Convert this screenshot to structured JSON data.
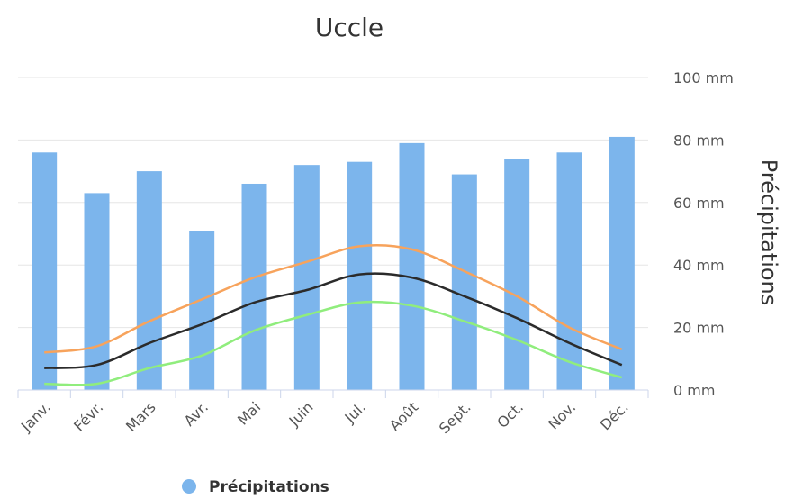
{
  "chart_data": {
    "type": "bar",
    "title": "Uccle",
    "ylabel": "Précipitations",
    "y_unit": "mm",
    "ylim": [
      0,
      100
    ],
    "yticks": [
      0,
      20,
      40,
      60,
      80,
      100
    ],
    "ytick_labels": [
      "0 mm",
      "20 mm",
      "40 mm",
      "60 mm",
      "80 mm",
      "100 mm"
    ],
    "grid": true,
    "legend_position": "bottom",
    "categories": [
      "Janv.",
      "Févr.",
      "Mars",
      "Avr.",
      "Mai",
      "Juin",
      "Jul.",
      "Août",
      "Sept.",
      "Oct.",
      "Nov.",
      "Déc."
    ],
    "series": [
      {
        "name": "Précipitations",
        "type": "bar",
        "color": "#7cb5ec",
        "values": [
          76,
          63,
          70,
          51,
          66,
          72,
          73,
          79,
          69,
          74,
          76,
          81
        ]
      },
      {
        "type": "line",
        "color": "#f7a35c",
        "values": [
          12,
          14,
          22,
          29,
          36,
          41,
          46,
          45,
          38,
          30,
          20,
          13
        ]
      },
      {
        "type": "line",
        "color": "#2b2b2b",
        "values": [
          7,
          8,
          15,
          21,
          28,
          32,
          37,
          36,
          30,
          23,
          15,
          8
        ]
      },
      {
        "type": "line",
        "color": "#90ed7d",
        "values": [
          2,
          2,
          7,
          11,
          19,
          24,
          28,
          27,
          22,
          16,
          9,
          4
        ]
      }
    ]
  },
  "colors": {
    "bar": "#7cb5ec",
    "grid": "#e6e6e6",
    "axis": "#ccd6eb"
  }
}
